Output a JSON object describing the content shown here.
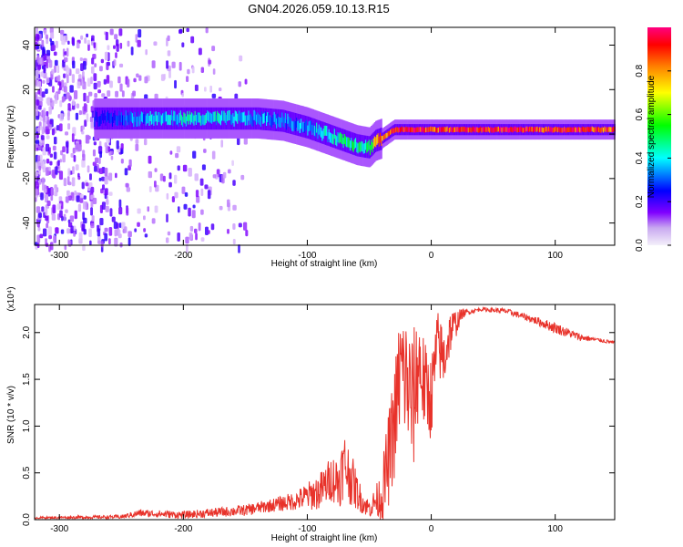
{
  "title": "GN04.2026.059.10.13.R15",
  "colors": {
    "snr_line": "#e8322a",
    "axis": "#000000",
    "background": "#ffffff"
  },
  "chart_data": [
    {
      "type": "heatmap",
      "name": "spectrogram",
      "xlabel": "Height of straight line (km)",
      "ylabel": "Frequency (Hz)",
      "xlim": [
        -320,
        148
      ],
      "ylim": [
        -50,
        48
      ],
      "x_ticks": [
        -300,
        -200,
        -100,
        0,
        100
      ],
      "y_ticks": [
        -40,
        -20,
        0,
        20,
        40
      ],
      "colorbar": {
        "label": "Normalized spectral amplitude",
        "range": [
          0.0,
          1.0
        ],
        "ticks": [
          0.0,
          0.2,
          0.4,
          0.6,
          0.8
        ],
        "colormap": [
          "#f4f0fa",
          "#8000ff",
          "#0000ff",
          "#00ffff",
          "#00ff00",
          "#ffff00",
          "#ff8000",
          "#ff0000",
          "#ff0080"
        ]
      },
      "ridge": {
        "heights_km": [
          -270,
          -250,
          -230,
          -200,
          -170,
          -140,
          -120,
          -100,
          -85,
          -70,
          -60,
          -50,
          -45,
          -40,
          -30,
          -20,
          0,
          50,
          100,
          148
        ],
        "frequency_hz": [
          7,
          7,
          7,
          7,
          7,
          7,
          6,
          3,
          0,
          -3,
          -5,
          -6,
          -3,
          -2,
          2,
          2,
          2,
          2,
          2,
          2
        ],
        "amplitude": [
          0.25,
          0.3,
          0.35,
          0.4,
          0.4,
          0.35,
          0.35,
          0.35,
          0.4,
          0.45,
          0.45,
          0.45,
          0.7,
          0.8,
          0.9,
          0.95,
          0.9,
          0.95,
          0.95,
          0.9
        ]
      }
    },
    {
      "type": "line",
      "name": "snr",
      "xlabel": "Height of straight line (km)",
      "ylabel": "SNR (10 * v/v)",
      "scale_label": "(x10⁴)",
      "xlim": [
        -320,
        148
      ],
      "ylim": [
        0,
        2.3
      ],
      "x_ticks": [
        -300,
        -200,
        -100,
        0,
        100
      ],
      "y_ticks": [
        0.0,
        0.5,
        1.0,
        1.5,
        2.0
      ],
      "y_tick_labels": [
        "0.0",
        "0.5",
        "1.0",
        "1.5",
        "2.0"
      ],
      "series": [
        {
          "name": "SNR",
          "x": [
            -320,
            -250,
            -235,
            -200,
            -150,
            -130,
            -110,
            -100,
            -90,
            -80,
            -75,
            -70,
            -65,
            -60,
            -55,
            -50,
            -45,
            -40,
            -35,
            -30,
            -25,
            -20,
            -15,
            -10,
            -5,
            0,
            5,
            10,
            15,
            20,
            25,
            30,
            40,
            60,
            80,
            90,
            100,
            110,
            120,
            135,
            148
          ],
          "y": [
            0.02,
            0.03,
            0.07,
            0.05,
            0.1,
            0.15,
            0.2,
            0.25,
            0.3,
            0.45,
            0.4,
            0.6,
            0.45,
            0.3,
            0.18,
            0.12,
            0.2,
            0.25,
            0.6,
            1.0,
            1.6,
            1.5,
            1.2,
            1.7,
            1.4,
            1.3,
            1.9,
            1.7,
            2.0,
            2.1,
            2.2,
            2.22,
            2.25,
            2.23,
            2.15,
            2.1,
            2.05,
            2.0,
            1.95,
            1.92,
            1.89
          ],
          "spread": [
            0.01,
            0.02,
            0.04,
            0.04,
            0.06,
            0.07,
            0.1,
            0.15,
            0.2,
            0.25,
            0.3,
            0.35,
            0.3,
            0.2,
            0.12,
            0.1,
            0.15,
            0.3,
            0.5,
            0.6,
            0.7,
            0.7,
            0.8,
            0.6,
            0.5,
            0.45,
            0.35,
            0.35,
            0.25,
            0.15,
            0.05,
            0.03,
            0.02,
            0.03,
            0.04,
            0.05,
            0.06,
            0.05,
            0.04,
            0.02,
            0.02
          ]
        }
      ]
    }
  ]
}
